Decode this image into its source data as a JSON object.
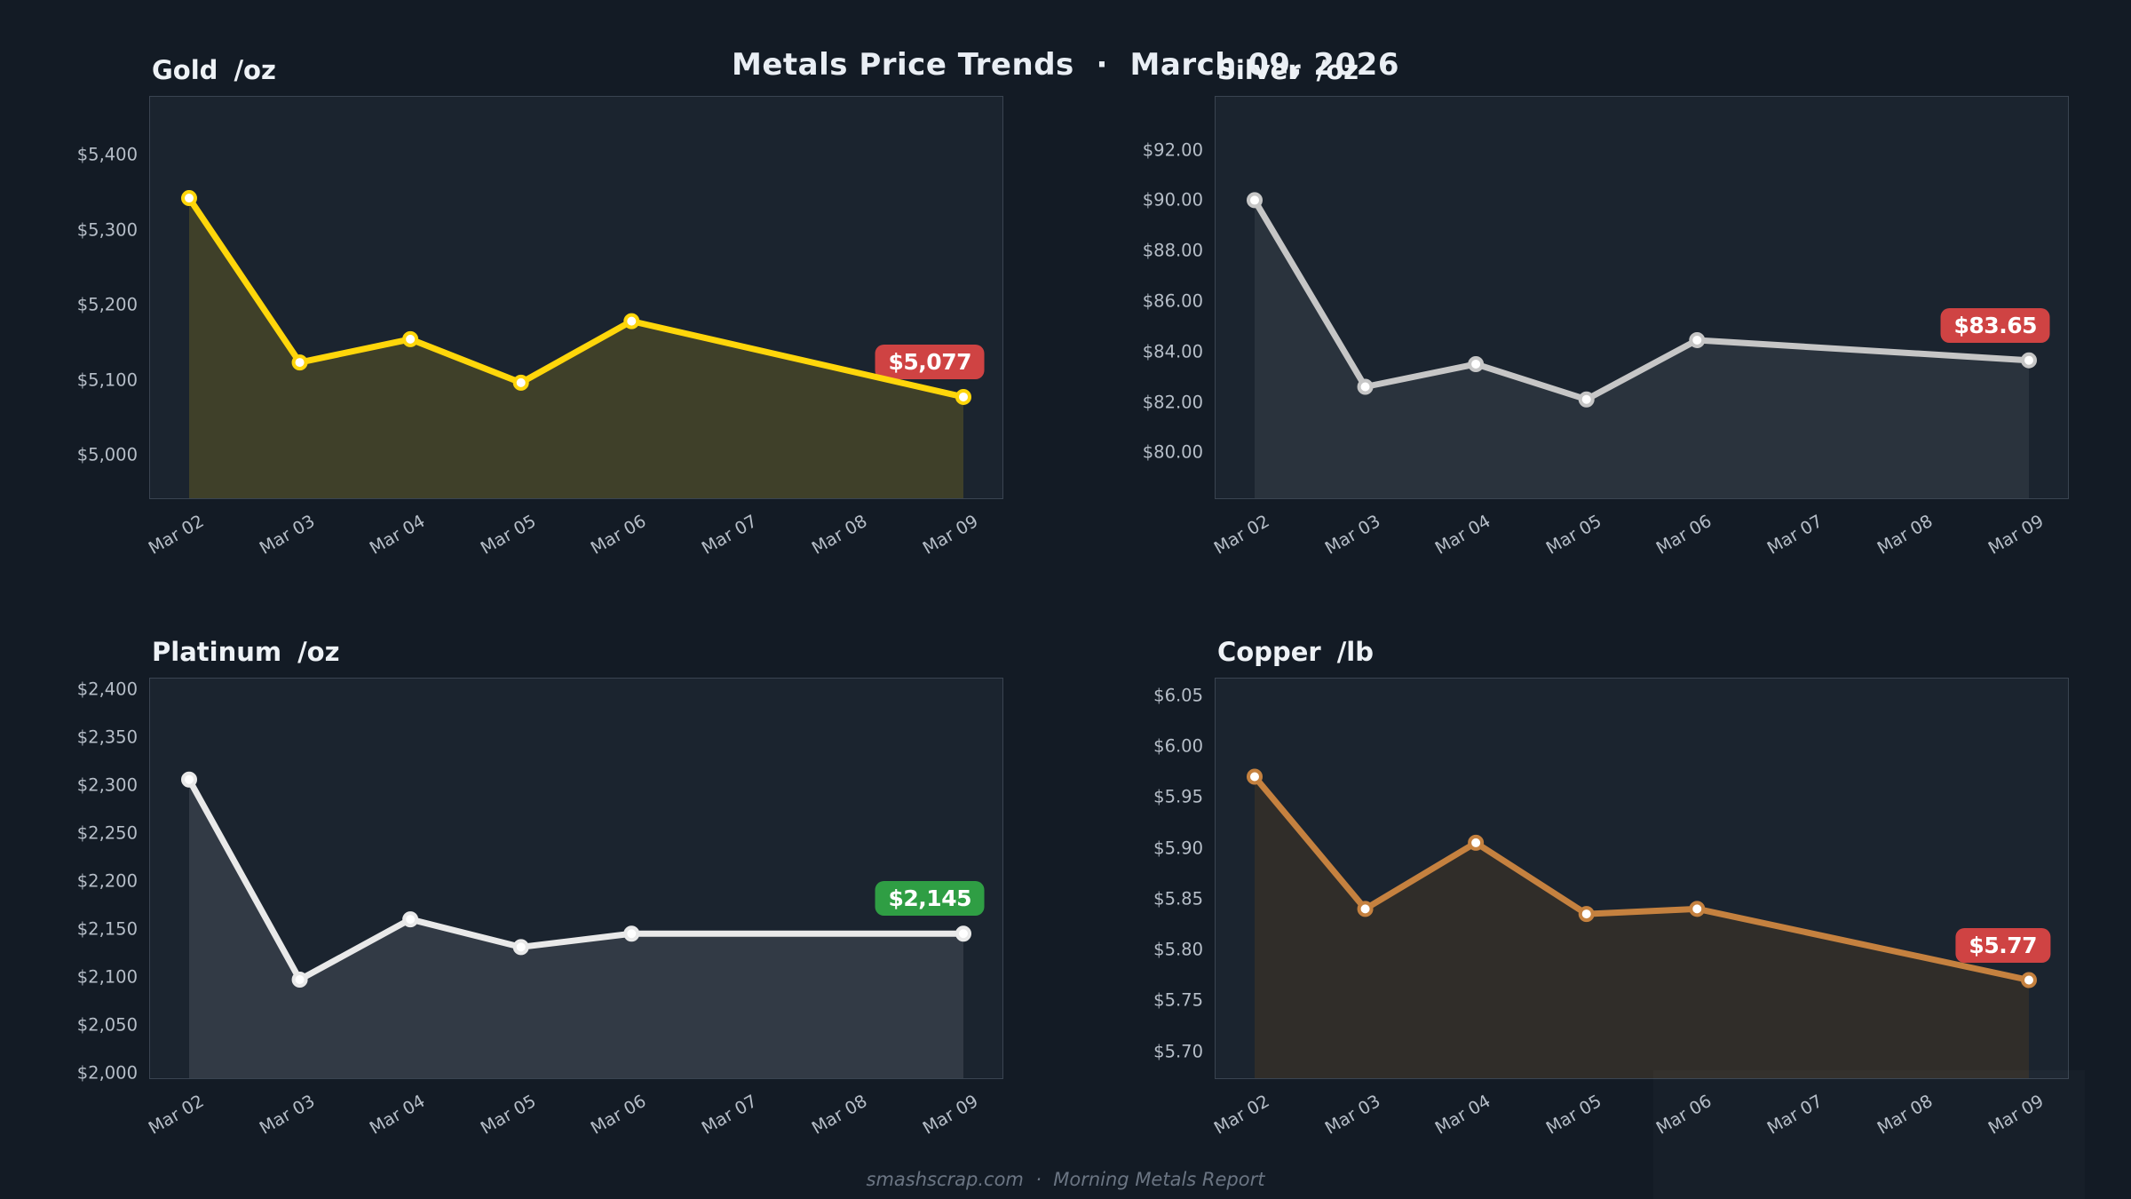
{
  "page": {
    "title": "Metals Price Trends  ·  March 09, 2026",
    "footer": "smashscrap.com  ·  Morning Metals Report",
    "background": "#131b25",
    "panel_background": "#1b242f",
    "spine_color": "#3a4451",
    "tick_color": "#b6bec8",
    "title_color": "#e9eef4",
    "footer_color": "#6b7583",
    "badge_red": "#cf4343",
    "badge_green": "#2f9e44"
  },
  "x_labels": [
    "Mar 02",
    "Mar 03",
    "Mar 04",
    "Mar 05",
    "Mar 06",
    "Mar 07",
    "Mar 08",
    "Mar 09"
  ],
  "chart_data": [
    {
      "type": "area",
      "title": "Gold",
      "unit": "/oz",
      "line_color": "#ffd60a",
      "fill_color": "rgba(255,214,10,0.16)",
      "badge": {
        "label": "$5,077",
        "color": "#cf4343"
      },
      "x": [
        "Mar 02",
        "Mar 03",
        "Mar 04",
        "Mar 05",
        "Mar 06",
        "Mar 09"
      ],
      "x_indices": [
        0,
        1,
        2,
        3,
        4,
        7
      ],
      "values": [
        5342,
        5123,
        5154,
        5096,
        5178,
        5077
      ],
      "y_ticks": [
        {
          "label": "$5,400",
          "value": 5400
        },
        {
          "label": "$5,300",
          "value": 5300
        },
        {
          "label": "$5,200",
          "value": 5200
        },
        {
          "label": "$5,100",
          "value": 5100
        },
        {
          "label": "$5,000",
          "value": 5000
        }
      ],
      "ylim": [
        4942,
        5477
      ],
      "xlabel": "",
      "ylabel": "",
      "grid": false,
      "legend": "none"
    },
    {
      "type": "area",
      "title": "Silver",
      "unit": "/oz",
      "line_color": "#c6c6c6",
      "fill_color": "rgba(210,215,225,0.085)",
      "badge": {
        "label": "$83.65",
        "color": "#cf4343"
      },
      "x": [
        "Mar 02",
        "Mar 03",
        "Mar 04",
        "Mar 05",
        "Mar 06",
        "Mar 09"
      ],
      "x_indices": [
        0,
        1,
        2,
        3,
        4,
        7
      ],
      "values": [
        90.0,
        82.6,
        83.5,
        82.1,
        84.45,
        83.65
      ],
      "y_ticks": [
        {
          "label": "$92.00",
          "value": 92
        },
        {
          "label": "$90.00",
          "value": 90
        },
        {
          "label": "$88.00",
          "value": 88
        },
        {
          "label": "$86.00",
          "value": 86
        },
        {
          "label": "$84.00",
          "value": 84
        },
        {
          "label": "$82.00",
          "value": 82
        },
        {
          "label": "$80.00",
          "value": 80
        }
      ],
      "ylim": [
        78.18,
        94.1
      ],
      "xlabel": "",
      "ylabel": "",
      "grid": false,
      "legend": "none"
    },
    {
      "type": "area",
      "title": "Platinum",
      "unit": "/oz",
      "line_color": "#e9e9e9",
      "fill_color": "rgba(235,237,243,0.115)",
      "badge": {
        "label": "$2,145",
        "color": "#2f9e44"
      },
      "x": [
        "Mar 02",
        "Mar 03",
        "Mar 04",
        "Mar 05",
        "Mar 06",
        "Mar 09"
      ],
      "x_indices": [
        0,
        1,
        2,
        3,
        4,
        7
      ],
      "values": [
        2306,
        2097,
        2160,
        2131,
        2145,
        2145
      ],
      "y_ticks": [
        {
          "label": "$2,400",
          "value": 2400
        },
        {
          "label": "$2,350",
          "value": 2350
        },
        {
          "label": "$2,300",
          "value": 2300
        },
        {
          "label": "$2,250",
          "value": 2250
        },
        {
          "label": "$2,200",
          "value": 2200
        },
        {
          "label": "$2,150",
          "value": 2150
        },
        {
          "label": "$2,100",
          "value": 2100
        },
        {
          "label": "$2,050",
          "value": 2050
        },
        {
          "label": "$2,000",
          "value": 2000
        }
      ],
      "ylim": [
        1994,
        2411.5
      ],
      "xlabel": "",
      "ylabel": "",
      "grid": false,
      "legend": "none"
    },
    {
      "type": "area",
      "title": "Copper",
      "unit": "/lb",
      "line_color": "#c5813f",
      "fill_color": "rgba(160,95,10,0.16)",
      "badge": {
        "label": "$5.77",
        "color": "#cf4343"
      },
      "x": [
        "Mar 02",
        "Mar 03",
        "Mar 04",
        "Mar 05",
        "Mar 06",
        "Mar 09"
      ],
      "x_indices": [
        0,
        1,
        2,
        3,
        4,
        7
      ],
      "values": [
        5.97,
        5.84,
        5.905,
        5.835,
        5.84,
        5.77
      ],
      "y_ticks": [
        {
          "label": "$6.05",
          "value": 6.05
        },
        {
          "label": "$6.00",
          "value": 6.0
        },
        {
          "label": "$5.95",
          "value": 5.95
        },
        {
          "label": "$5.90",
          "value": 5.9
        },
        {
          "label": "$5.85",
          "value": 5.85
        },
        {
          "label": "$5.80",
          "value": 5.8
        },
        {
          "label": "$5.75",
          "value": 5.75
        },
        {
          "label": "$5.70",
          "value": 5.7
        }
      ],
      "ylim": [
        5.6735,
        6.0665
      ],
      "xlabel": "",
      "ylabel": "",
      "grid": false,
      "legend": "none"
    }
  ]
}
